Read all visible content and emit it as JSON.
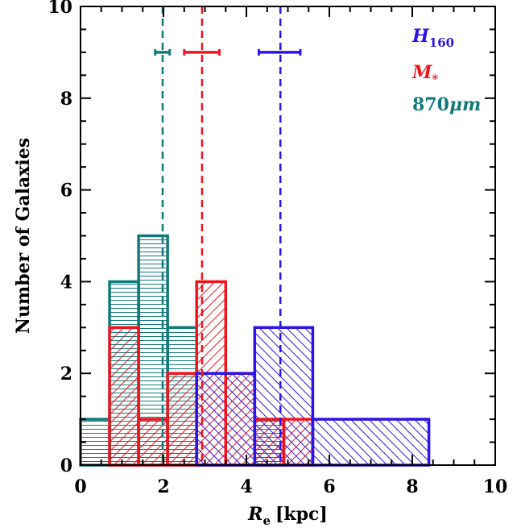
{
  "chart_data": {
    "type": "histogram",
    "xlabel": {
      "main": "R",
      "sub": "e",
      "unit": "[kpc]"
    },
    "ylabel": "Number of Galaxies",
    "xlim": [
      0,
      10
    ],
    "ylim": [
      0,
      10
    ],
    "xticks": [
      "0",
      "2",
      "4",
      "6",
      "8",
      "10"
    ],
    "yticks": [
      "0",
      "2",
      "4",
      "6",
      "8",
      "10"
    ],
    "grid": false,
    "legend_position": "top-right",
    "series": [
      {
        "name": "870μm",
        "label_main": "870",
        "label_unit": "μm",
        "color": "#127a7a",
        "hatch": "horizontal",
        "bins": [
          {
            "x0": 0.0,
            "x1": 0.7,
            "count": 1
          },
          {
            "x0": 0.7,
            "x1": 1.4,
            "count": 4
          },
          {
            "x0": 1.4,
            "x1": 2.1,
            "count": 5
          },
          {
            "x0": 2.1,
            "x1": 2.8,
            "count": 3
          },
          {
            "x0": 4.2,
            "x1": 4.9,
            "count": 1
          }
        ],
        "median": 1.98,
        "median_err": [
          1.8,
          2.15
        ],
        "errbar_y": 9.0
      },
      {
        "name": "M*",
        "label_main": "M",
        "label_sub": "*",
        "color": "#f0141e",
        "hatch": "back-diagonal",
        "bins": [
          {
            "x0": 0.7,
            "x1": 1.4,
            "count": 3
          },
          {
            "x0": 1.4,
            "x1": 2.1,
            "count": 1
          },
          {
            "x0": 2.1,
            "x1": 2.8,
            "count": 2
          },
          {
            "x0": 2.8,
            "x1": 3.5,
            "count": 4
          },
          {
            "x0": 3.5,
            "x1": 4.2,
            "count": 2
          },
          {
            "x0": 4.2,
            "x1": 4.9,
            "count": 1
          },
          {
            "x0": 4.9,
            "x1": 5.6,
            "count": 1
          }
        ],
        "median": 2.93,
        "median_err": [
          2.5,
          3.35
        ],
        "errbar_y": 9.0
      },
      {
        "name": "H160",
        "label_main": "H",
        "label_sub": "160",
        "color": "#2a14e6",
        "hatch": "forward-diagonal",
        "bins": [
          {
            "x0": 2.8,
            "x1": 4.2,
            "count": 2
          },
          {
            "x0": 4.2,
            "x1": 5.6,
            "count": 3
          },
          {
            "x0": 5.6,
            "x1": 8.4,
            "count": 1
          }
        ],
        "median": 4.82,
        "median_err": [
          4.3,
          5.3
        ],
        "errbar_y": 9.0
      }
    ]
  }
}
